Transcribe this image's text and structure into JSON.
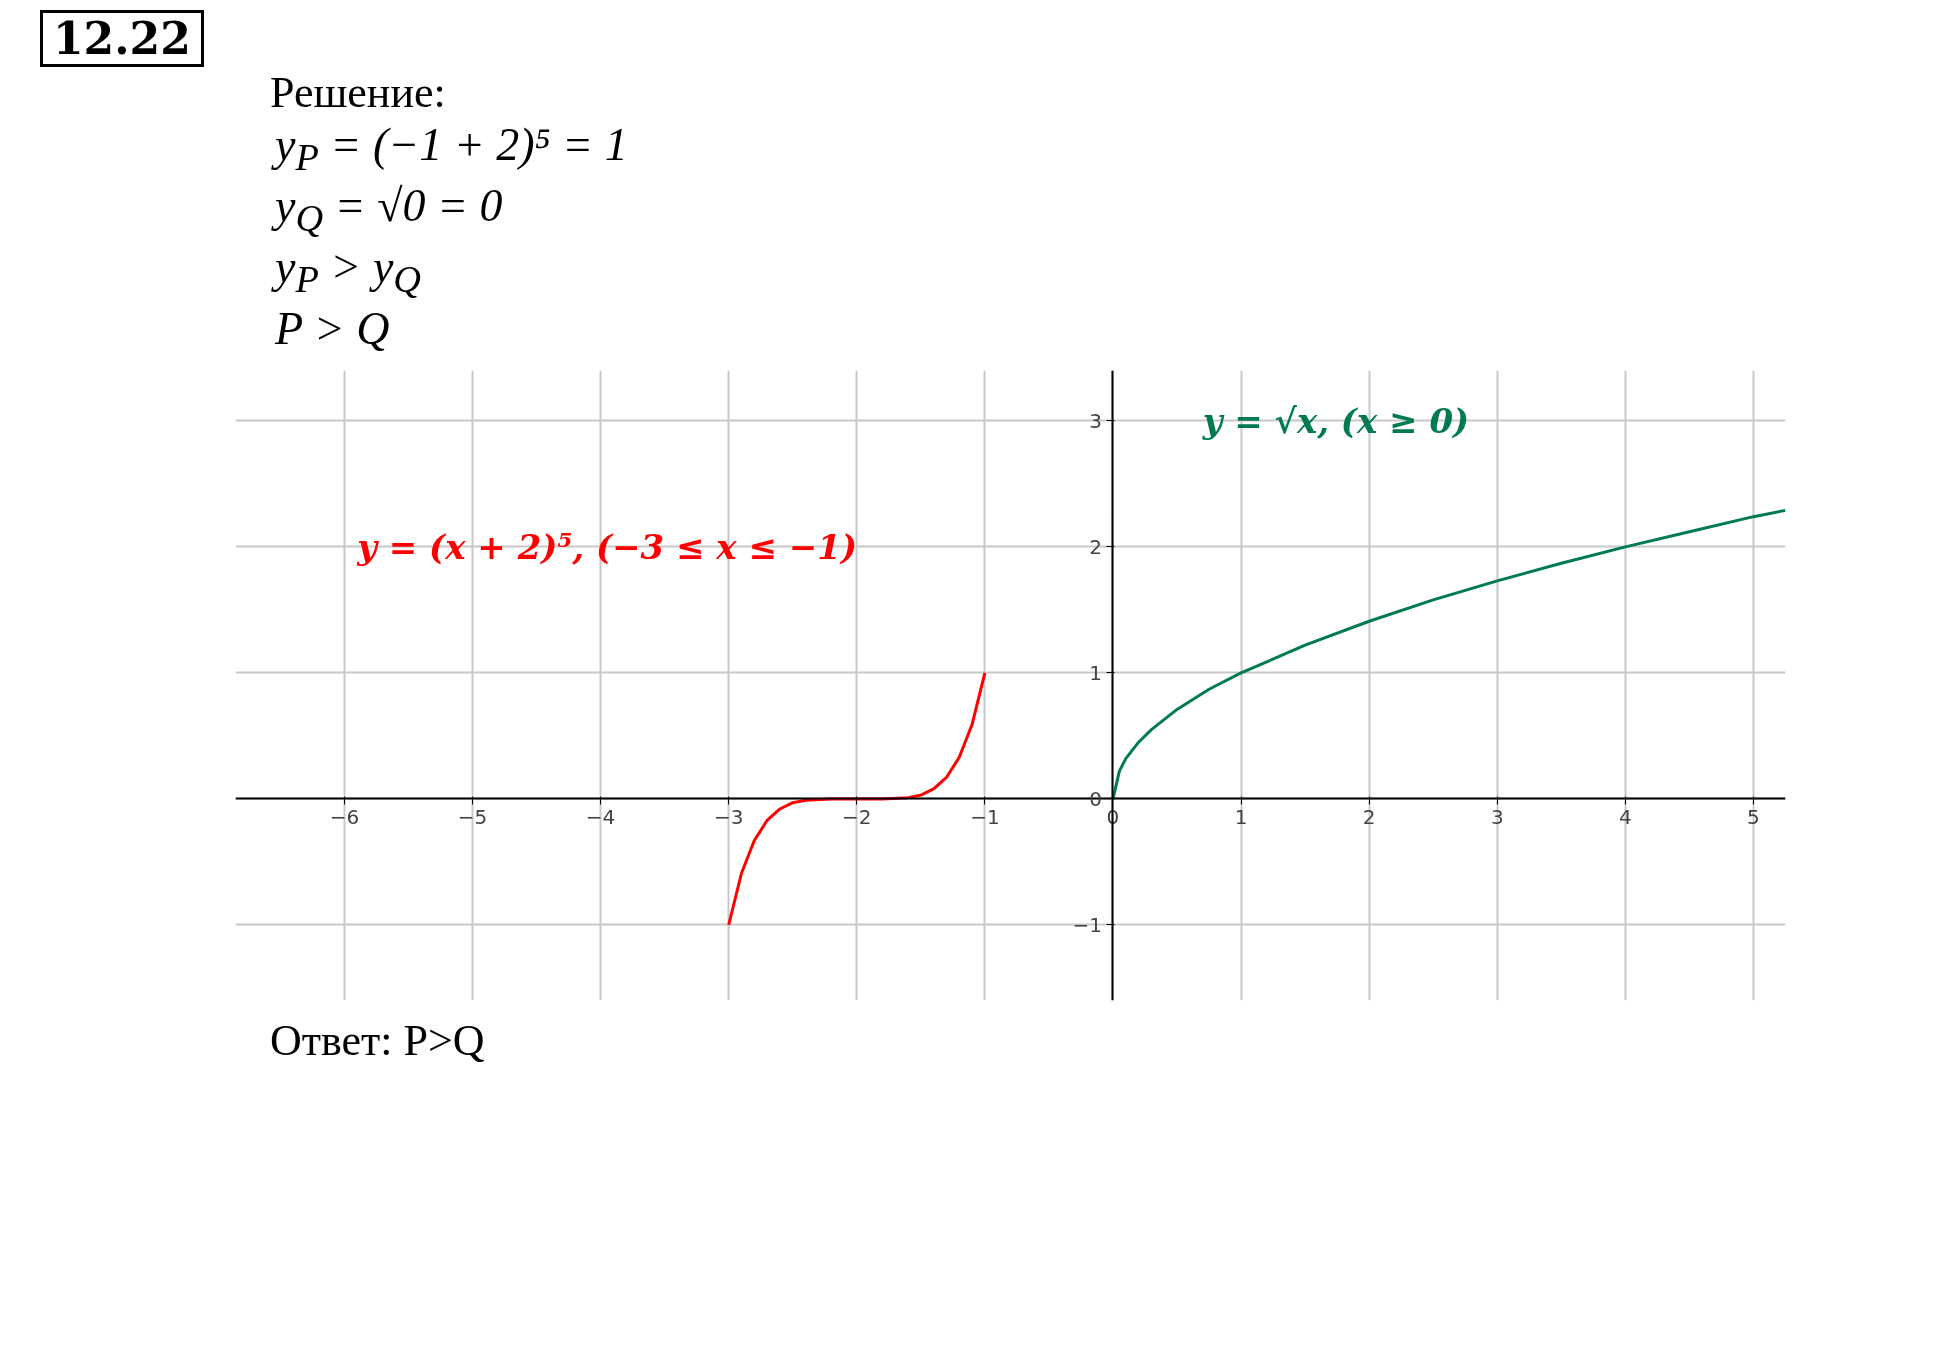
{
  "chart_data": {
    "type": "line",
    "title": "12.22",
    "subtitle": "Решение:",
    "annotations": [
      "y$_{P}$ = (−1 + 2)⁵ = 1",
      "y$_{Q}$ = √0 = 0",
      "y$_{P}$ > y$_{Q}$",
      "P > Q",
      "Ответ: P>Q"
    ],
    "series": [
      {
        "name": "y = (x + 2)⁵,    (−3 ≤ x ≤ −1)",
        "color": "#ff0000",
        "x": [
          -3,
          -2.9,
          -2.8,
          -2.7,
          -2.6,
          -2.5,
          -2.4,
          -2.2,
          -2,
          -1.8,
          -1.6,
          -1.5,
          -1.4,
          -1.3,
          -1.2,
          -1.1,
          -1
        ],
        "values": [
          -1,
          -0.59,
          -0.33,
          -0.17,
          -0.08,
          -0.03,
          -0.01,
          0,
          0,
          0,
          0.01,
          0.03,
          0.08,
          0.17,
          0.33,
          0.59,
          1
        ]
      },
      {
        "name": "y = √x,    (x ≥ 0)",
        "color": "#007a50",
        "x": [
          0,
          0.05,
          0.1,
          0.2,
          0.3,
          0.5,
          0.75,
          1,
          1.5,
          2,
          2.5,
          3,
          3.5,
          4,
          4.5,
          5,
          5.25
        ],
        "values": [
          0,
          0.22,
          0.32,
          0.45,
          0.55,
          0.71,
          0.87,
          1,
          1.22,
          1.41,
          1.58,
          1.73,
          1.87,
          2,
          2.12,
          2.24,
          2.29
        ]
      }
    ],
    "xlim": [
      -6.85,
      5.25
    ],
    "ylim": [
      -1.6,
      3.4
    ],
    "xticks": [
      -6,
      -5,
      -4,
      -3,
      -2,
      -1,
      0,
      1,
      2,
      3,
      4,
      5
    ],
    "yticks": [
      -1,
      0,
      1,
      2,
      3
    ],
    "grid": true,
    "line_style": "solid",
    "marker": "none"
  }
}
